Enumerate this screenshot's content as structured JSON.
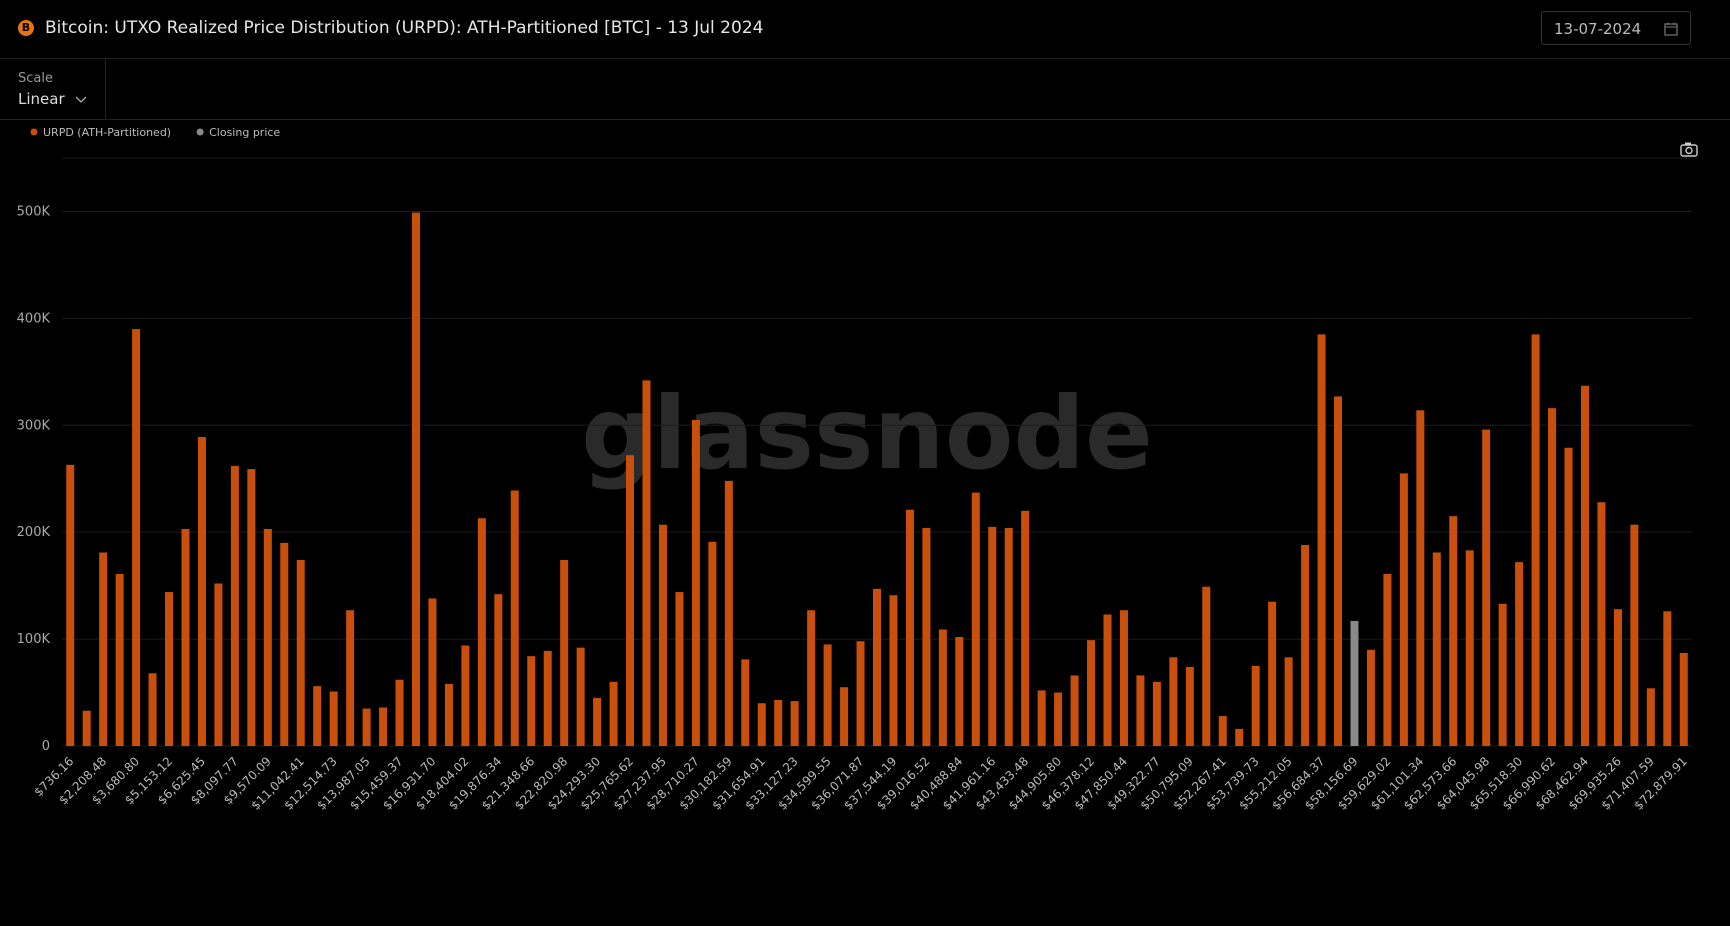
{
  "header": {
    "title": "Bitcoin: UTXO Realized Price Distribution (URPD): ATH-Partitioned [BTC] - 13 Jul 2024",
    "date": "13-07-2024"
  },
  "controls": {
    "scale_label": "Scale",
    "scale_value": "Linear"
  },
  "chart_data": {
    "type": "bar",
    "watermark": "glassnode",
    "categories": [
      "$736.16",
      null,
      "$2,208.48",
      null,
      "$3,680.80",
      null,
      "$5,153.12",
      null,
      "$6,625.45",
      null,
      "$8,097.77",
      null,
      "$9,570.09",
      null,
      "$11,042.41",
      null,
      "$12,514.73",
      null,
      "$13,987.05",
      null,
      "$15,459.37",
      null,
      "$16,931.70",
      null,
      "$18,404.02",
      null,
      "$19,876.34",
      null,
      "$21,348.66",
      null,
      "$22,820.98",
      null,
      "$24,293.30",
      null,
      "$25,765.62",
      null,
      "$27,237.95",
      null,
      "$28,710.27",
      null,
      "$30,182.59",
      null,
      "$31,654.91",
      null,
      "$33,127.23",
      null,
      "$34,599.55",
      null,
      "$36,071.87",
      null,
      "$37,544.19",
      null,
      "$39,016.52",
      null,
      "$40,488.84",
      null,
      "$41,961.16",
      null,
      "$43,433.48",
      null,
      "$44,905.80",
      null,
      "$46,378.12",
      null,
      "$47,850.44",
      null,
      "$49,322.77",
      null,
      "$50,795.09",
      null,
      "$52,267.41",
      null,
      "$53,739.73",
      null,
      "$55,212.05",
      null,
      "$56,684.37",
      null,
      "$58,156.69",
      null,
      "$59,629.02",
      null,
      "$61,101.34",
      null,
      "$62,573.66",
      null,
      "$64,045.98",
      null,
      "$65,518.30",
      null,
      "$66,990.62",
      null,
      "$68,462.94",
      null,
      "$69,935.26",
      null,
      "$71,407.59",
      null,
      "$72,879.91"
    ],
    "series": [
      {
        "name": "URPD (ATH-Partitioned)",
        "color": "#c9500c",
        "values": [
          263000,
          33000,
          181000,
          161000,
          390000,
          68000,
          144000,
          203000,
          289000,
          152000,
          262000,
          259000,
          203000,
          190000,
          174000,
          56000,
          51000,
          127000,
          35000,
          36000,
          62000,
          499000,
          138000,
          58000,
          94000,
          213000,
          142000,
          239000,
          84000,
          89000,
          174000,
          92000,
          45000,
          60000,
          272000,
          342000,
          207000,
          144000,
          305000,
          191000,
          248000,
          81000,
          40000,
          43000,
          42000,
          127000,
          95000,
          55000,
          98000,
          147000,
          141000,
          221000,
          204000,
          109000,
          102000,
          237000,
          205000,
          204000,
          220000,
          52000,
          50000,
          66000,
          99000,
          123000,
          127000,
          66000,
          60000,
          83000,
          74000,
          149000,
          28000,
          16000,
          75000,
          135000,
          83000,
          188000,
          385000,
          327000,
          null,
          90000,
          161000,
          255000,
          314000,
          181000,
          215000,
          183000,
          296000,
          133000,
          172000,
          385000,
          316000,
          279000,
          337000,
          228000,
          128000,
          207000,
          54000,
          126000,
          87000
        ]
      },
      {
        "name": "Closing price",
        "color": "#8a8a8a",
        "values": [
          null,
          null,
          null,
          null,
          null,
          null,
          null,
          null,
          null,
          null,
          null,
          null,
          null,
          null,
          null,
          null,
          null,
          null,
          null,
          null,
          null,
          null,
          null,
          null,
          null,
          null,
          null,
          null,
          null,
          null,
          null,
          null,
          null,
          null,
          null,
          null,
          null,
          null,
          null,
          null,
          null,
          null,
          null,
          null,
          null,
          null,
          null,
          null,
          null,
          null,
          null,
          null,
          null,
          null,
          null,
          null,
          null,
          null,
          null,
          null,
          null,
          null,
          null,
          null,
          null,
          null,
          null,
          null,
          null,
          null,
          null,
          null,
          null,
          null,
          null,
          null,
          null,
          null,
          117000,
          null,
          null,
          null,
          null,
          null,
          null,
          null,
          null,
          null,
          null,
          null,
          null,
          null,
          null,
          null,
          null,
          null,
          null,
          null,
          null
        ]
      }
    ],
    "ylim": [
      0,
      550000
    ],
    "yticks": [
      0,
      {
        "value": 100000,
        "label": "100K"
      },
      {
        "value": 200000,
        "label": "200K"
      },
      {
        "value": 300000,
        "label": "300K"
      },
      {
        "value": 400000,
        "label": "400K"
      },
      {
        "value": 500000,
        "label": "500K"
      }
    ],
    "grid": true,
    "legend": "top-left"
  }
}
